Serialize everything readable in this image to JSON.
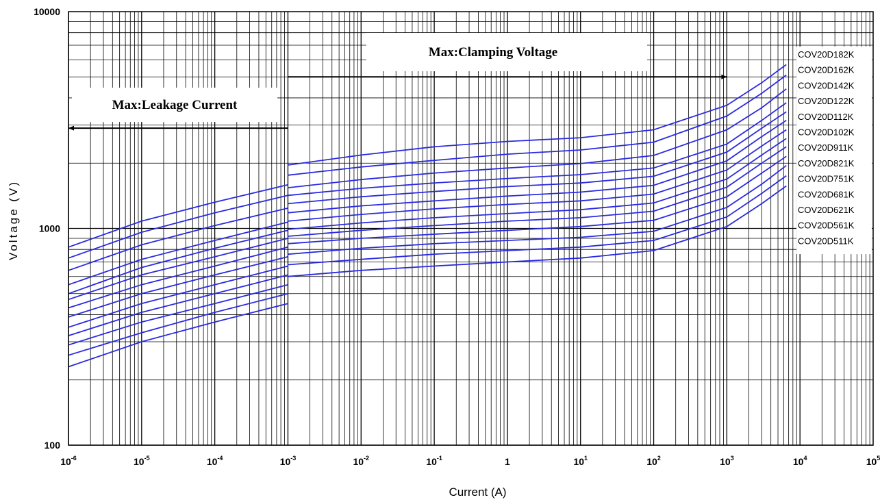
{
  "chart_data": {
    "type": "line",
    "title": "",
    "xlabel": "Current (A)",
    "ylabel": "Voltage (V)",
    "x_scale": "log",
    "y_scale": "log",
    "xlim": [
      1e-06,
      100000
    ],
    "ylim": [
      100,
      10000
    ],
    "grid": true,
    "x_ticks": [
      {
        "base": "10",
        "exp": "-6"
      },
      {
        "base": "10",
        "exp": "-5"
      },
      {
        "base": "10",
        "exp": "-4"
      },
      {
        "base": "10",
        "exp": "-3"
      },
      {
        "base": "10",
        "exp": "-2"
      },
      {
        "base": "10",
        "exp": "-1"
      },
      {
        "base": "1",
        "exp": ""
      },
      {
        "base": "10",
        "exp": "1"
      },
      {
        "base": "10",
        "exp": "2"
      },
      {
        "base": "10",
        "exp": "3"
      },
      {
        "base": "10",
        "exp": "4"
      },
      {
        "base": "10",
        "exp": "5"
      }
    ],
    "y_ticks": [
      "100",
      "1000",
      "10000"
    ],
    "line_color": "#2a2ae0",
    "annotations": [
      {
        "text": "Max:Clamping Voltage",
        "arrow_to": "right",
        "x_from": 0.001,
        "x_to": 1000,
        "y": 5000
      },
      {
        "text": "Max:Leakage Current",
        "arrow_to": "left",
        "x_from": 0.001,
        "x_to": 1e-06,
        "y": 2900
      }
    ],
    "legend_position": "right",
    "series": [
      {
        "name": "COV20D182K",
        "leakage": {
          "x": [
            1e-06,
            1e-05,
            0.0001,
            0.001
          ],
          "y": [
            820,
            1080,
            1320,
            1590
          ]
        },
        "clamping": {
          "x": [
            0.001,
            0.01,
            0.1,
            1,
            10,
            100,
            1000,
            3000,
            6500
          ],
          "y": [
            1960,
            2180,
            2380,
            2520,
            2620,
            2850,
            3700,
            4700,
            5700
          ]
        }
      },
      {
        "name": "COV20D162K",
        "leakage": {
          "x": [
            1e-06,
            1e-05,
            0.0001,
            0.001
          ],
          "y": [
            730,
            960,
            1180,
            1420
          ]
        },
        "clamping": {
          "x": [
            0.001,
            0.01,
            0.1,
            1,
            10,
            100,
            1000,
            3000,
            6500
          ],
          "y": [
            1760,
            1920,
            2060,
            2200,
            2300,
            2500,
            3300,
            4200,
            5100
          ]
        }
      },
      {
        "name": "COV20D142K",
        "leakage": {
          "x": [
            1e-06,
            1e-05,
            0.0001,
            0.001
          ],
          "y": [
            640,
            840,
            1030,
            1240
          ]
        },
        "clamping": {
          "x": [
            0.001,
            0.01,
            0.1,
            1,
            10,
            100,
            1000,
            3000,
            6500
          ],
          "y": [
            1540,
            1680,
            1800,
            1900,
            1990,
            2170,
            2850,
            3600,
            4400
          ]
        }
      },
      {
        "name": "COV20D122K",
        "leakage": {
          "x": [
            1e-06,
            1e-05,
            0.0001,
            0.001
          ],
          "y": [
            550,
            720,
            880,
            1070
          ]
        },
        "clamping": {
          "x": [
            0.001,
            0.01,
            0.1,
            1,
            10,
            100,
            1000,
            3000,
            6500
          ],
          "y": [
            1420,
            1530,
            1620,
            1700,
            1770,
            1900,
            2450,
            3150,
            3800
          ]
        }
      },
      {
        "name": "COV20D112K",
        "leakage": {
          "x": [
            1e-06,
            1e-05,
            0.0001,
            0.001
          ],
          "y": [
            500,
            660,
            810,
            980
          ]
        },
        "clamping": {
          "x": [
            0.001,
            0.01,
            0.1,
            1,
            10,
            100,
            1000,
            3000,
            6500
          ],
          "y": [
            1300,
            1400,
            1480,
            1560,
            1620,
            1740,
            2250,
            2900,
            3450
          ]
        }
      },
      {
        "name": "COV20D102K",
        "leakage": {
          "x": [
            1e-06,
            1e-05,
            0.0001,
            0.001
          ],
          "y": [
            470,
            610,
            740,
            900
          ]
        },
        "clamping": {
          "x": [
            0.001,
            0.01,
            0.1,
            1,
            10,
            100,
            1000,
            3000,
            6500
          ],
          "y": [
            1180,
            1270,
            1340,
            1410,
            1470,
            1580,
            2050,
            2650,
            3150
          ]
        }
      },
      {
        "name": "COV20D911K",
        "leakage": {
          "x": [
            1e-06,
            1e-05,
            0.0001,
            0.001
          ],
          "y": [
            430,
            550,
            670,
            820
          ]
        },
        "clamping": {
          "x": [
            0.001,
            0.01,
            0.1,
            1,
            10,
            100,
            1000,
            3000,
            6500
          ],
          "y": [
            1080,
            1160,
            1230,
            1290,
            1340,
            1440,
            1860,
            2400,
            2850
          ]
        }
      },
      {
        "name": "COV20D821K",
        "leakage": {
          "x": [
            1e-06,
            1e-05,
            0.0001,
            0.001
          ],
          "y": [
            390,
            500,
            610,
            740
          ]
        },
        "clamping": {
          "x": [
            0.001,
            0.01,
            0.1,
            1,
            10,
            100,
            1000,
            3000,
            6500
          ],
          "y": [
            990,
            1060,
            1120,
            1170,
            1220,
            1310,
            1690,
            2180,
            2600
          ]
        }
      },
      {
        "name": "COV20D751K",
        "leakage": {
          "x": [
            1e-06,
            1e-05,
            0.0001,
            0.001
          ],
          "y": [
            350,
            450,
            550,
            670
          ]
        },
        "clamping": {
          "x": [
            0.001,
            0.01,
            0.1,
            1,
            10,
            100,
            1000,
            3000,
            6500
          ],
          "y": [
            920,
            980,
            1030,
            1080,
            1120,
            1200,
            1550,
            2000,
            2380
          ]
        }
      },
      {
        "name": "COV20D681K",
        "leakage": {
          "x": [
            1e-06,
            1e-05,
            0.0001,
            0.001
          ],
          "y": [
            320,
            410,
            500,
            610
          ]
        },
        "clamping": {
          "x": [
            0.001,
            0.01,
            0.1,
            1,
            10,
            100,
            1000,
            3000,
            6500
          ],
          "y": [
            850,
            900,
            940,
            980,
            1020,
            1090,
            1400,
            1800,
            2150
          ]
        }
      },
      {
        "name": "COV20D621K",
        "leakage": {
          "x": [
            1e-06,
            1e-05,
            0.0001,
            0.001
          ],
          "y": [
            290,
            370,
            450,
            550
          ]
        },
        "clamping": {
          "x": [
            0.001,
            0.01,
            0.1,
            1,
            10,
            100,
            1000,
            3000,
            6500
          ],
          "y": [
            760,
            810,
            850,
            880,
            910,
            970,
            1250,
            1600,
            1950
          ]
        }
      },
      {
        "name": "COV20D561K",
        "leakage": {
          "x": [
            1e-06,
            1e-05,
            0.0001,
            0.001
          ],
          "y": [
            260,
            330,
            410,
            500
          ]
        },
        "clamping": {
          "x": [
            0.001,
            0.01,
            0.1,
            1,
            10,
            100,
            1000,
            3000,
            6500
          ],
          "y": [
            680,
            720,
            760,
            790,
            820,
            880,
            1130,
            1450,
            1750
          ]
        }
      },
      {
        "name": "COV20D511K",
        "leakage": {
          "x": [
            1e-06,
            1e-05,
            0.0001,
            0.001
          ],
          "y": [
            230,
            300,
            370,
            450
          ]
        },
        "clamping": {
          "x": [
            0.001,
            0.01,
            0.1,
            1,
            10,
            100,
            1000,
            3000,
            6500
          ],
          "y": [
            600,
            640,
            670,
            700,
            730,
            790,
            1020,
            1300,
            1570
          ]
        }
      }
    ]
  }
}
